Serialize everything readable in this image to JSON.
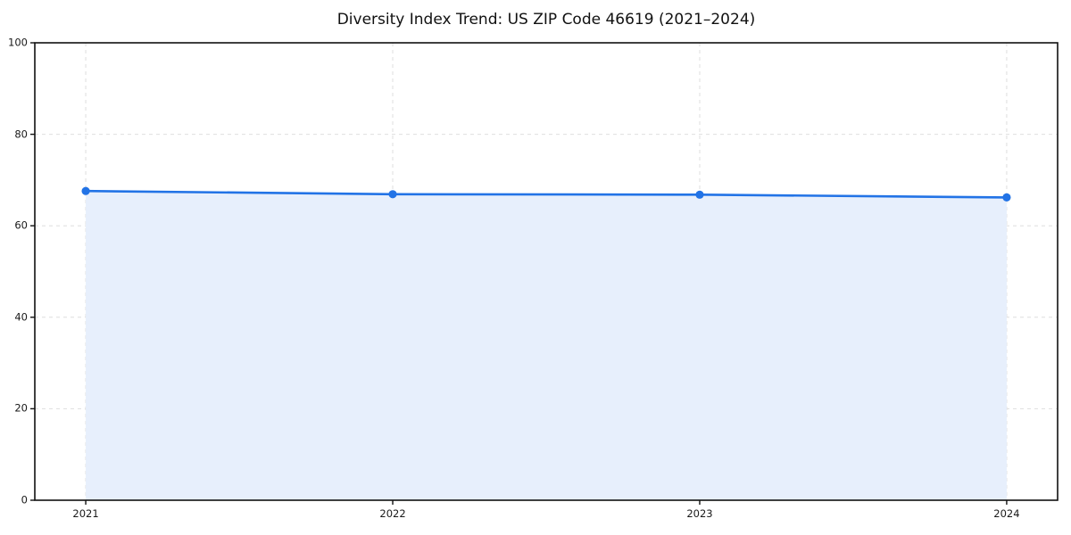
{
  "title": "Diversity Index Trend: US ZIP Code 46619 (2021–2024)",
  "chart_data": {
    "type": "area",
    "title": "Diversity Index Trend: US ZIP Code 46619 (2021–2024)",
    "categories": [
      "2021",
      "2022",
      "2023",
      "2024"
    ],
    "series": [
      {
        "name": "Diversity Index",
        "values": [
          67.6,
          66.9,
          66.8,
          66.2
        ]
      }
    ],
    "xlabel": "",
    "ylabel": "",
    "ylim": [
      0,
      100
    ],
    "yticks": [
      0,
      20,
      40,
      60,
      80,
      100
    ],
    "grid": true,
    "grid_style": "dashed",
    "legend": false,
    "legend_position": "none",
    "colors": {
      "line": "#2273e6",
      "marker": "#2273e6",
      "fill": "#e7effc",
      "grid": "#dedede",
      "axis": "#111111",
      "text": "#1a1a1a",
      "background": "#ffffff"
    }
  }
}
